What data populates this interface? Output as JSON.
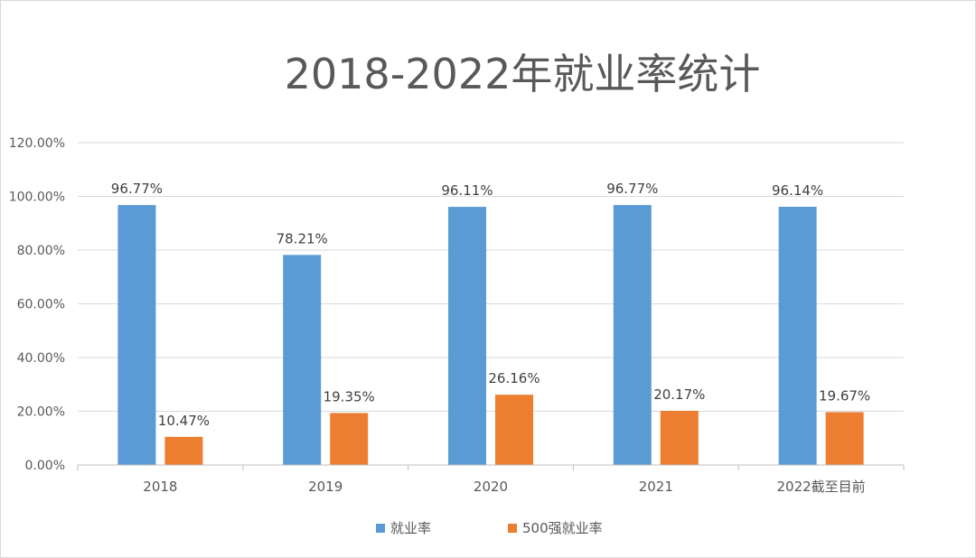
{
  "chart_data": {
    "type": "bar",
    "title": "2018-2022年就业率统计",
    "categories": [
      "2018",
      "2019",
      "2020",
      "2021",
      "2022截至目前"
    ],
    "series": [
      {
        "name": "就业率",
        "values": [
          96.77,
          78.21,
          96.11,
          96.77,
          96.14
        ],
        "labels": [
          "96.77%",
          "78.21%",
          "96.11%",
          "96.77%",
          "96.14%"
        ],
        "color": "#5b9bd5"
      },
      {
        "name": "500强就业率",
        "values": [
          10.47,
          19.35,
          26.16,
          20.17,
          19.67
        ],
        "labels": [
          "10.47%",
          "19.35%",
          "26.16%",
          "20.17%",
          "19.67%"
        ],
        "color": "#ed7d31"
      }
    ],
    "ylim": [
      0,
      120
    ],
    "yticks": [
      0,
      20,
      40,
      60,
      80,
      100,
      120
    ],
    "ytick_labels": [
      "0.00%",
      "20.00%",
      "40.00%",
      "60.00%",
      "80.00%",
      "100.00%",
      "120.00%"
    ],
    "grid": true,
    "legend": "bottom"
  }
}
